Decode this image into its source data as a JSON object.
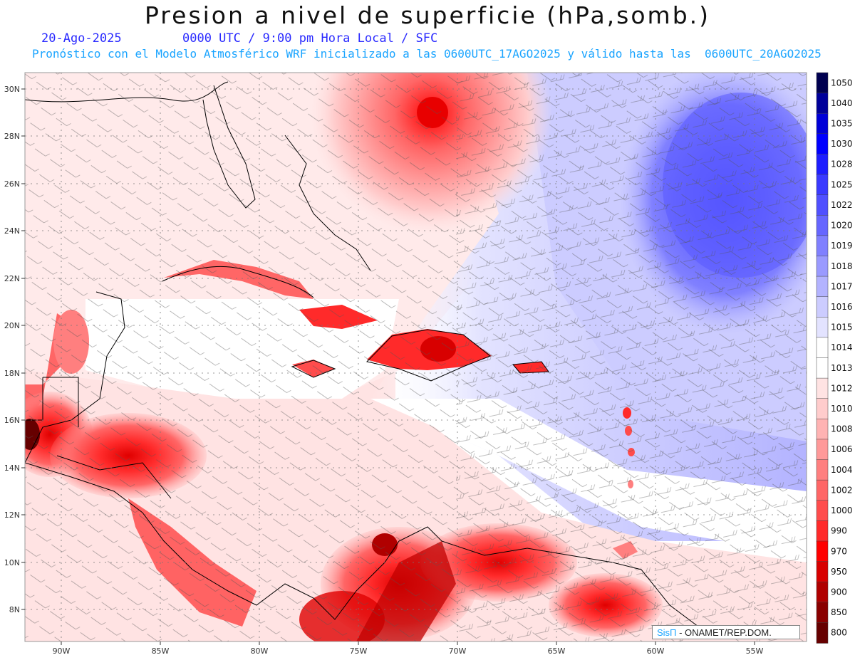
{
  "title": "Presion a nivel de superficie (hPa,somb.)",
  "date": "20-Ago-2025",
  "time_line": "0000 UTC / 9:00 pm Hora Local / SFC",
  "forecast_line": "Pronóstico con el Modelo Atmosférico WRF inicializado a las 0600UTC_17AGO2025 y válido hasta las  0600UTC_20AGO2025",
  "lon_ticks": [
    "90W",
    "85W",
    "80W",
    "75W",
    "70W",
    "65W",
    "60W",
    "55W"
  ],
  "lat_ticks": [
    "30N",
    "28N",
    "26N",
    "24N",
    "22N",
    "20N",
    "18N",
    "16N",
    "14N",
    "12N",
    "10N",
    "8N"
  ],
  "colorbar": {
    "levels": [
      "1050",
      "1040",
      "1035",
      "1030",
      "1028",
      "1025",
      "1022",
      "1020",
      "1019",
      "1018",
      "1017",
      "1016",
      "1015",
      "1014",
      "1013",
      "1012",
      "1010",
      "1008",
      "1006",
      "1004",
      "1002",
      "1000",
      "990",
      "970",
      "950",
      "900",
      "850",
      "800"
    ],
    "colors": [
      "#000050",
      "#00009a",
      "#0000d8",
      "#0000ff",
      "#1e1eff",
      "#3a3aff",
      "#5050ff",
      "#6666ff",
      "#8080ff",
      "#9a9aff",
      "#b3b3ff",
      "#ccccff",
      "#e3e3ff",
      "#ffffff",
      "#ffffff",
      "#ffe3e3",
      "#ffcccc",
      "#ffb3b3",
      "#ff9999",
      "#ff7f7f",
      "#ff6666",
      "#ff4c4c",
      "#ff2a2a",
      "#ff0000",
      "#d80000",
      "#b00000",
      "#8a0000",
      "#660000"
    ]
  },
  "credit": {
    "brand": "SisΠ",
    "text": " - ONAMET/REP.DOM."
  },
  "colors": {
    "title": "#111111",
    "date": "#2a2aff",
    "forecast": "#1aa4ff"
  }
}
